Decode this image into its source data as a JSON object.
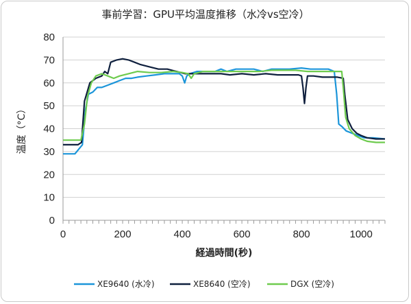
{
  "chart_data": {
    "type": "line",
    "title": "事前学習：GPU平均温度推移（水冷vs空冷）",
    "xlabel": "経過時間(秒)",
    "ylabel": "温度（°C）",
    "xlim": [
      0,
      1080
    ],
    "ylim": [
      0,
      80
    ],
    "xticks": [
      "0",
      "200",
      "400",
      "600",
      "800",
      "1000"
    ],
    "yticks": [
      "0",
      "10",
      "20",
      "30",
      "40",
      "50",
      "60",
      "70",
      "80"
    ],
    "grid": "horizontal",
    "legend_position": "bottom",
    "series": [
      {
        "name": "XE9640 (水冷)",
        "color": "#1b95d9",
        "points": [
          [
            0,
            29
          ],
          [
            40,
            29
          ],
          [
            65,
            33
          ],
          [
            75,
            48
          ],
          [
            85,
            55
          ],
          [
            100,
            56
          ],
          [
            115,
            58
          ],
          [
            130,
            58
          ],
          [
            150,
            59
          ],
          [
            170,
            60
          ],
          [
            190,
            61
          ],
          [
            210,
            62
          ],
          [
            230,
            62
          ],
          [
            250,
            62.5
          ],
          [
            280,
            63
          ],
          [
            310,
            63.5
          ],
          [
            340,
            64
          ],
          [
            370,
            64
          ],
          [
            390,
            64
          ],
          [
            400,
            63
          ],
          [
            408,
            60
          ],
          [
            415,
            63
          ],
          [
            425,
            64
          ],
          [
            450,
            65
          ],
          [
            480,
            65
          ],
          [
            510,
            65
          ],
          [
            530,
            66
          ],
          [
            550,
            65
          ],
          [
            580,
            66
          ],
          [
            610,
            66
          ],
          [
            640,
            66
          ],
          [
            670,
            65
          ],
          [
            700,
            66
          ],
          [
            730,
            66
          ],
          [
            760,
            66
          ],
          [
            800,
            66.5
          ],
          [
            830,
            66
          ],
          [
            860,
            66
          ],
          [
            890,
            66
          ],
          [
            910,
            65
          ],
          [
            918,
            55
          ],
          [
            925,
            42
          ],
          [
            935,
            41
          ],
          [
            950,
            39
          ],
          [
            970,
            38
          ],
          [
            990,
            37
          ],
          [
            1010,
            36
          ],
          [
            1040,
            36
          ],
          [
            1080,
            35.5
          ]
        ]
      },
      {
        "name": "XE8640 (空冷)",
        "color": "#0e1f3d",
        "points": [
          [
            0,
            33
          ],
          [
            50,
            33
          ],
          [
            62,
            34
          ],
          [
            72,
            52
          ],
          [
            90,
            60
          ],
          [
            110,
            62
          ],
          [
            130,
            63
          ],
          [
            140,
            65
          ],
          [
            150,
            64
          ],
          [
            160,
            69
          ],
          [
            180,
            70
          ],
          [
            200,
            70.5
          ],
          [
            220,
            70
          ],
          [
            240,
            69
          ],
          [
            260,
            68
          ],
          [
            290,
            67
          ],
          [
            320,
            66
          ],
          [
            350,
            66
          ],
          [
            380,
            65
          ],
          [
            410,
            64
          ],
          [
            440,
            64
          ],
          [
            470,
            64
          ],
          [
            500,
            64
          ],
          [
            530,
            64
          ],
          [
            560,
            63.5
          ],
          [
            600,
            64
          ],
          [
            640,
            63.5
          ],
          [
            680,
            64
          ],
          [
            720,
            63.5
          ],
          [
            760,
            63.5
          ],
          [
            790,
            63.5
          ],
          [
            800,
            63
          ],
          [
            805,
            58
          ],
          [
            810,
            51
          ],
          [
            815,
            58
          ],
          [
            820,
            63
          ],
          [
            840,
            63
          ],
          [
            870,
            62.5
          ],
          [
            900,
            62.5
          ],
          [
            920,
            62.5
          ],
          [
            940,
            62
          ],
          [
            945,
            55
          ],
          [
            955,
            44
          ],
          [
            970,
            40
          ],
          [
            985,
            38
          ],
          [
            1000,
            37
          ],
          [
            1020,
            36
          ],
          [
            1050,
            35.5
          ],
          [
            1080,
            35.5
          ]
        ]
      },
      {
        "name": "DGX (空冷)",
        "color": "#6ecb4e",
        "points": [
          [
            0,
            35
          ],
          [
            60,
            35
          ],
          [
            72,
            42
          ],
          [
            82,
            54
          ],
          [
            95,
            60
          ],
          [
            110,
            63
          ],
          [
            130,
            64
          ],
          [
            150,
            63
          ],
          [
            170,
            62
          ],
          [
            190,
            63
          ],
          [
            220,
            64
          ],
          [
            250,
            65
          ],
          [
            290,
            64.5
          ],
          [
            330,
            64.5
          ],
          [
            370,
            65
          ],
          [
            400,
            64.5
          ],
          [
            420,
            64
          ],
          [
            430,
            62
          ],
          [
            440,
            64
          ],
          [
            470,
            65
          ],
          [
            500,
            65
          ],
          [
            540,
            65
          ],
          [
            580,
            65
          ],
          [
            620,
            65
          ],
          [
            660,
            65
          ],
          [
            700,
            65.5
          ],
          [
            740,
            65.5
          ],
          [
            780,
            65.5
          ],
          [
            820,
            65
          ],
          [
            860,
            65
          ],
          [
            900,
            65
          ],
          [
            935,
            65
          ],
          [
            940,
            58
          ],
          [
            948,
            45
          ],
          [
            960,
            40
          ],
          [
            980,
            37
          ],
          [
            1000,
            35.5
          ],
          [
            1020,
            34.5
          ],
          [
            1050,
            34
          ],
          [
            1080,
            34
          ]
        ]
      }
    ]
  }
}
